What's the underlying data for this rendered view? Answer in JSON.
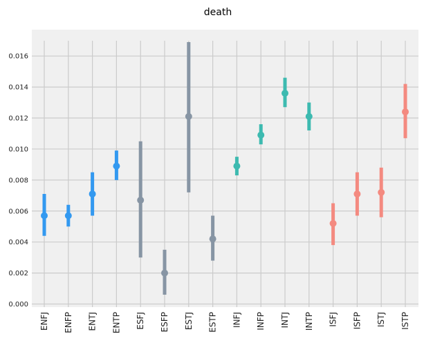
{
  "chart_data": {
    "type": "pointrange",
    "title": "death",
    "xlabel": "",
    "ylabel": "",
    "ylim": [
      -0.0002,
      0.0177
    ],
    "y_ticks": [
      "0.000",
      "0.002",
      "0.004",
      "0.006",
      "0.008",
      "0.010",
      "0.012",
      "0.014",
      "0.016"
    ],
    "grid": true,
    "legend": "none",
    "background_color": "#f0f0f0",
    "grid_color": "#cbcbcb",
    "categories": [
      "ENFJ",
      "ENFP",
      "ENTJ",
      "ENTP",
      "ESFJ",
      "ESFP",
      "ESTJ",
      "ESTP",
      "INFJ",
      "INFP",
      "INTJ",
      "INTP",
      "ISFJ",
      "ISFP",
      "ISTJ",
      "ISTP"
    ],
    "values": [
      0.0057,
      0.0057,
      0.0071,
      0.0089,
      0.0067,
      0.002,
      0.0121,
      0.0042,
      0.0089,
      0.0109,
      0.0136,
      0.0121,
      0.0052,
      0.0071,
      0.0072,
      0.0124
    ],
    "lower": [
      0.0044,
      0.005,
      0.0057,
      0.008,
      0.003,
      0.0006,
      0.0072,
      0.0028,
      0.0083,
      0.0103,
      0.0127,
      0.0112,
      0.0038,
      0.0057,
      0.0056,
      0.0107
    ],
    "upper": [
      0.0071,
      0.0064,
      0.0085,
      0.0099,
      0.0105,
      0.0035,
      0.0169,
      0.0057,
      0.0095,
      0.0116,
      0.0146,
      0.013,
      0.0065,
      0.0085,
      0.0088,
      0.0142
    ],
    "colors": [
      "#3399f0",
      "#3399f0",
      "#3399f0",
      "#3399f0",
      "#8795a4",
      "#8795a4",
      "#8795a4",
      "#8795a4",
      "#3dbab0",
      "#3dbab0",
      "#3dbab0",
      "#3dbab0",
      "#f48a80",
      "#f48a80",
      "#f48a80",
      "#f48a80"
    ]
  }
}
